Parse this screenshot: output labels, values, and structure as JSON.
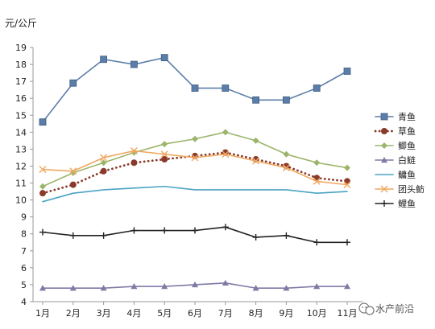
{
  "chart_data": {
    "type": "line",
    "ylabel": "元/公斤",
    "ylim": [
      4,
      19
    ],
    "yticks": [
      4,
      5,
      6,
      7,
      8,
      9,
      10,
      11,
      12,
      13,
      14,
      15,
      16,
      17,
      18,
      19
    ],
    "categories": [
      "1月",
      "2月",
      "3月",
      "4月",
      "5月",
      "6月",
      "7月",
      "8月",
      "9月",
      "10月",
      "11月"
    ],
    "grid": false,
    "legend_position": "right",
    "series": [
      {
        "name": "青鱼",
        "color": "#5b7da8",
        "marker": "square",
        "dash": "solid",
        "values": [
          14.6,
          16.9,
          18.3,
          18.0,
          18.4,
          16.6,
          16.6,
          15.9,
          15.9,
          16.6,
          17.6
        ]
      },
      {
        "name": "草鱼",
        "color": "#8a3a2a",
        "marker": "circle",
        "dash": "dotted",
        "values": [
          10.4,
          10.9,
          11.7,
          12.2,
          12.4,
          12.6,
          12.8,
          12.4,
          12.0,
          11.3,
          11.1
        ]
      },
      {
        "name": "鲫鱼",
        "color": "#9cb56a",
        "marker": "diamond",
        "dash": "solid",
        "values": [
          10.8,
          11.6,
          12.2,
          12.8,
          13.3,
          13.6,
          14.0,
          13.5,
          12.7,
          12.2,
          11.9
        ]
      },
      {
        "name": "白鲢",
        "color": "#7e7aa6",
        "marker": "triangle",
        "dash": "solid",
        "values": [
          4.8,
          4.8,
          4.8,
          4.9,
          4.9,
          5.0,
          5.1,
          4.8,
          4.8,
          4.9,
          4.9
        ]
      },
      {
        "name": "鳙鱼",
        "color": "#4aa3c3",
        "marker": "none",
        "dash": "solid",
        "values": [
          9.9,
          10.4,
          10.6,
          10.7,
          10.8,
          10.6,
          10.6,
          10.6,
          10.6,
          10.4,
          10.5
        ]
      },
      {
        "name": "团头鲂",
        "color": "#f0a860",
        "marker": "x",
        "dash": "solid",
        "values": [
          11.8,
          11.7,
          12.5,
          12.9,
          12.7,
          12.5,
          12.7,
          12.3,
          11.9,
          11.1,
          10.9
        ]
      },
      {
        "name": "鲤鱼",
        "color": "#222222",
        "marker": "plus",
        "dash": "solid",
        "values": [
          8.1,
          7.9,
          7.9,
          8.2,
          8.2,
          8.2,
          8.4,
          7.8,
          7.9,
          7.5,
          7.5
        ]
      }
    ]
  },
  "watermark": {
    "text": "水产前沿",
    "icon": "wechat-icon"
  }
}
